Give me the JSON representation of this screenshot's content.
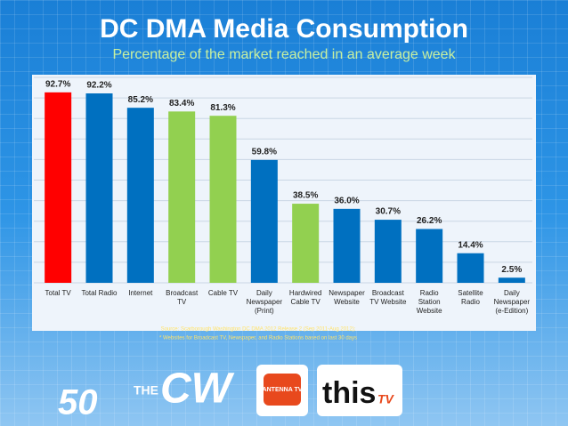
{
  "chart_data": {
    "type": "bar",
    "title": "DC DMA Media Consumption",
    "subtitle": "Percentage of the market reached in an average week",
    "categories": [
      "Total TV",
      "Total Radio",
      "Internet",
      "Broadcast TV",
      "Cable TV",
      "Daily Newspaper (Print)",
      "Hardwired Cable TV",
      "Newspaper Website",
      "Broadcast TV Website",
      "Radio Station Website",
      "Satellite Radio",
      "Daily Newspaper (e-Edition)"
    ],
    "values": [
      92.7,
      92.2,
      85.2,
      83.4,
      81.3,
      59.8,
      38.5,
      36.0,
      30.7,
      26.2,
      14.4,
      2.5
    ],
    "value_labels": [
      "92.7%",
      "92.2%",
      "85.2%",
      "83.4%",
      "81.3%",
      "59.8%",
      "38.5%",
      "36.0%",
      "30.7%",
      "26.2%",
      "14.4%",
      "2.5%"
    ],
    "colors": [
      "#ff0000",
      "#0070c0",
      "#0070c0",
      "#92d050",
      "#92d050",
      "#0070c0",
      "#92d050",
      "#0070c0",
      "#0070c0",
      "#0070c0",
      "#0070c0",
      "#0070c0"
    ],
    "ylim": [
      0,
      100
    ],
    "yticks": [
      0,
      10,
      20,
      30,
      40,
      50,
      60,
      70,
      80,
      90,
      100
    ],
    "grid": true,
    "notes": [
      "Source: Scarborough Washington DC DMA 2012 Release 2 (Sep 2011-Aug 2012);",
      "* Websites for Broadcast TV, Newspaper, and Radio Stations based on last 30 days"
    ],
    "logos": [
      "50",
      "THE",
      "CW",
      "ANTENNA TV",
      "this",
      "TV"
    ]
  }
}
